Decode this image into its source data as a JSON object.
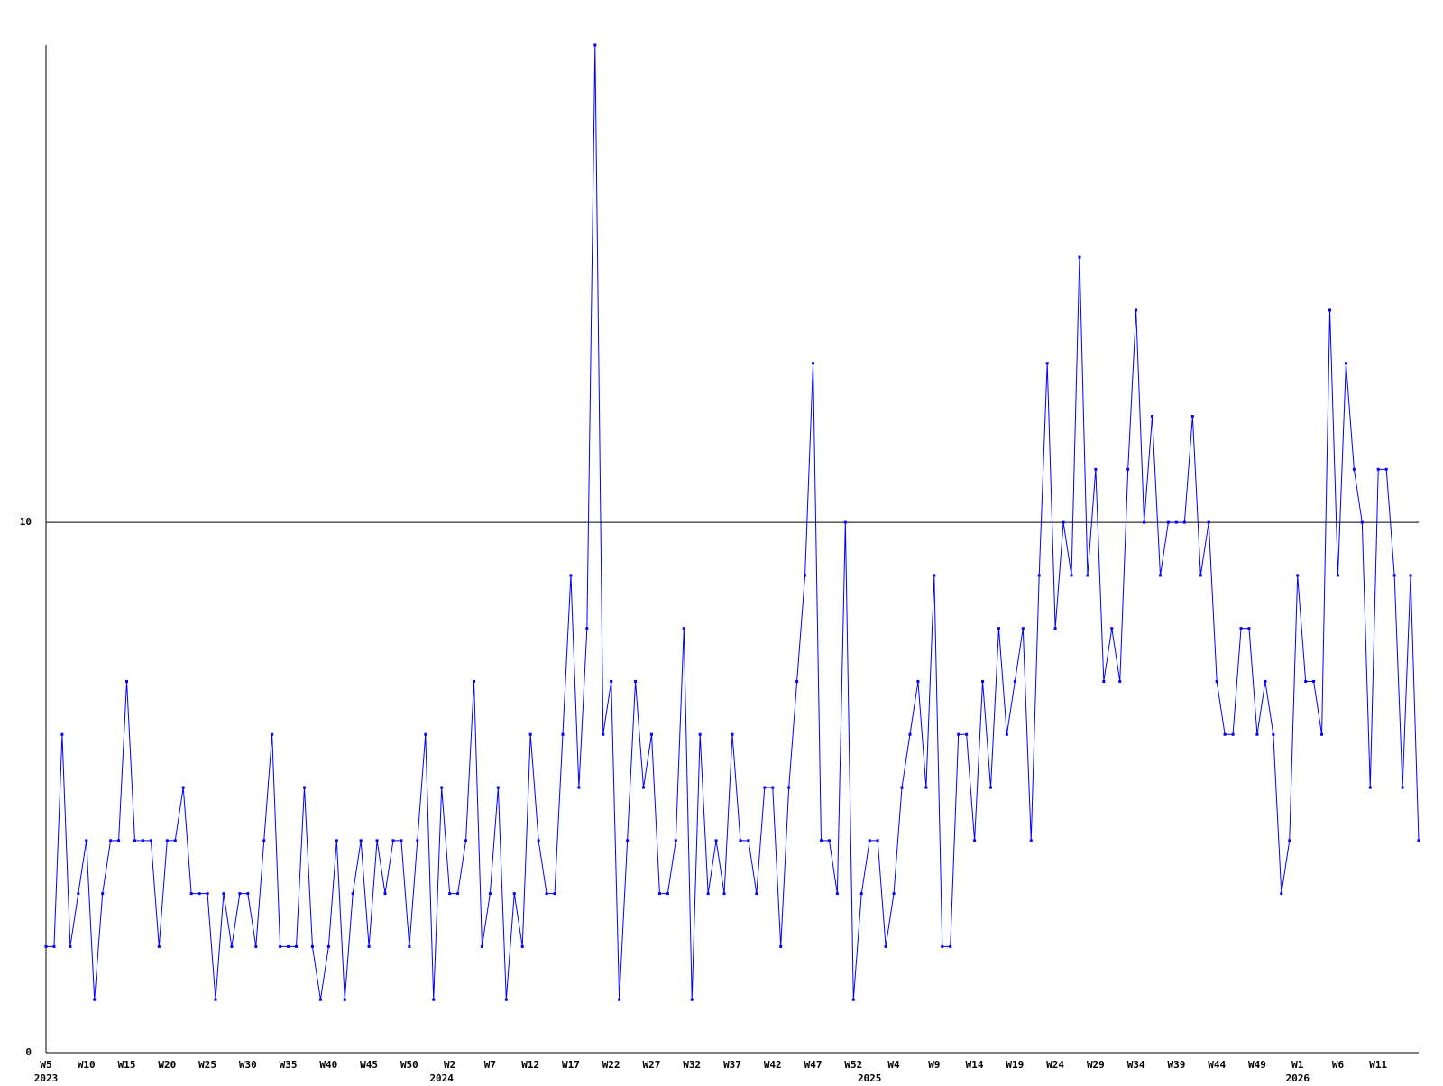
{
  "chart_data": {
    "type": "line",
    "color": "#0000ff",
    "axis_color": "#000000",
    "ylim": [
      0,
      19
    ],
    "yticks": [
      0,
      10
    ],
    "grid": true,
    "categories": [
      "W5",
      null,
      null,
      null,
      null,
      "W10",
      null,
      null,
      null,
      null,
      "W15",
      null,
      null,
      null,
      null,
      "W20",
      null,
      null,
      null,
      null,
      "W25",
      null,
      null,
      null,
      null,
      "W30",
      null,
      null,
      null,
      null,
      "W35",
      null,
      null,
      null,
      null,
      "W40",
      null,
      null,
      null,
      null,
      "W45",
      null,
      null,
      null,
      null,
      "W50",
      null,
      null,
      null,
      null,
      "W2",
      null,
      null,
      null,
      null,
      "W7",
      null,
      null,
      null,
      null,
      "W12",
      null,
      null,
      null,
      null,
      "W17",
      null,
      null,
      null,
      null,
      "W22",
      null,
      null,
      null,
      null,
      "W27",
      null,
      null,
      null,
      null,
      "W32",
      null,
      null,
      null,
      null,
      "W37",
      null,
      null,
      null,
      null,
      "W42",
      null,
      null,
      null,
      null,
      "W47",
      null,
      null,
      null,
      null,
      "W52",
      null,
      null,
      null,
      null,
      "W4",
      null,
      null,
      null,
      null,
      "W9",
      null,
      null,
      null,
      null,
      "W14",
      null,
      null,
      null,
      null,
      "W19",
      null,
      null,
      null,
      null,
      "W24",
      null,
      null,
      null,
      null,
      "W29",
      null,
      null,
      null,
      null,
      "W34",
      null,
      null,
      null,
      null,
      "W39",
      null,
      null,
      null,
      null,
      "W44",
      null,
      null,
      null,
      null,
      "W49",
      null,
      null,
      null,
      null,
      "W1",
      null,
      null,
      null,
      null,
      "W6",
      null,
      null,
      null,
      null,
      "W11",
      null,
      null,
      null,
      null,
      null
    ],
    "year_labels": [
      "2023",
      null,
      null,
      null,
      null,
      null,
      null,
      null,
      null,
      null,
      null,
      null,
      null,
      null,
      null,
      null,
      null,
      null,
      null,
      null,
      null,
      null,
      null,
      null,
      null,
      null,
      null,
      null,
      null,
      null,
      null,
      null,
      null,
      null,
      null,
      null,
      null,
      null,
      null,
      null,
      null,
      null,
      null,
      null,
      null,
      null,
      null,
      null,
      null,
      "2024",
      null,
      null,
      null,
      null,
      null,
      null,
      null,
      null,
      null,
      null,
      null,
      null,
      null,
      null,
      null,
      null,
      null,
      null,
      null,
      null,
      null,
      null,
      null,
      null,
      null,
      null,
      null,
      null,
      null,
      null,
      null,
      null,
      null,
      null,
      null,
      null,
      null,
      null,
      null,
      null,
      null,
      null,
      null,
      null,
      null,
      null,
      null,
      null,
      null,
      null,
      null,
      null,
      "2025",
      null,
      null,
      null,
      null,
      null,
      null,
      null,
      null,
      null,
      null,
      null,
      null,
      null,
      null,
      null,
      null,
      null,
      null,
      null,
      null,
      null,
      null,
      null,
      null,
      null,
      null,
      null,
      null,
      null,
      null,
      null,
      null,
      null,
      null,
      null,
      null,
      null,
      null,
      null,
      null,
      null,
      null,
      null,
      null,
      null,
      null,
      null,
      null,
      null,
      null,
      null,
      null,
      "2026",
      null,
      null,
      null,
      null,
      null,
      null,
      null,
      null,
      null,
      null,
      null,
      null,
      null,
      null,
      null
    ],
    "values": [
      2,
      2,
      6,
      2,
      3,
      4,
      1,
      3,
      4,
      4,
      7,
      4,
      4,
      4,
      2,
      4,
      4,
      5,
      3,
      3,
      3,
      1,
      3,
      2,
      3,
      3,
      2,
      4,
      6,
      2,
      2,
      2,
      5,
      2,
      1,
      2,
      4,
      1,
      3,
      4,
      2,
      4,
      3,
      4,
      4,
      2,
      4,
      6,
      1,
      5,
      3,
      3,
      4,
      7,
      2,
      3,
      5,
      1,
      3,
      2,
      6,
      4,
      3,
      3,
      6,
      9,
      5,
      8,
      19,
      6,
      7,
      1,
      4,
      7,
      5,
      6,
      3,
      3,
      4,
      8,
      1,
      6,
      3,
      4,
      3,
      6,
      4,
      4,
      3,
      5,
      5,
      2,
      5,
      7,
      9,
      13,
      4,
      4,
      3,
      10,
      1,
      3,
      4,
      4,
      2,
      3,
      5,
      6,
      7,
      5,
      9,
      2,
      2,
      6,
      6,
      4,
      7,
      5,
      8,
      6,
      7,
      8,
      4,
      9,
      13,
      8,
      10,
      9,
      15,
      9,
      11,
      7,
      8,
      7,
      11,
      14,
      10,
      12,
      9,
      10,
      10,
      10,
      12,
      9,
      10,
      7,
      6,
      6,
      8,
      8,
      6,
      7,
      6,
      3,
      4,
      9,
      7,
      7,
      6,
      14,
      9,
      13,
      11,
      10,
      5,
      11,
      11,
      9,
      5,
      9,
      4
    ]
  }
}
